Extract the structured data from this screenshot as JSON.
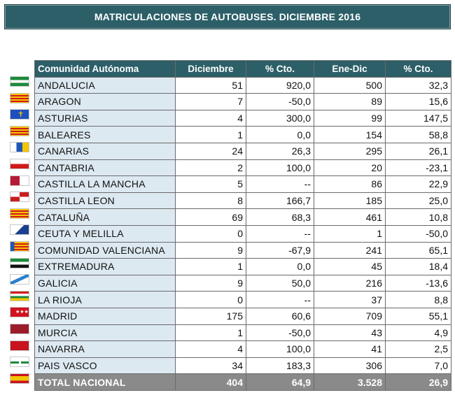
{
  "title": "MATRICULACIONES DE AUTOBUSES. DICIEMBRE 2016",
  "headers": [
    "Comunidad Autónoma",
    "Diciembre",
    "% Cto.",
    "Ene-Dic",
    "% Cto."
  ],
  "rows": [
    {
      "name": "ANDALUCIA",
      "dic": "51",
      "cto1": "920,0",
      "ene": "500",
      "cto2": "32,3",
      "flag": "andalucia-flag"
    },
    {
      "name": "ARAGON",
      "dic": "7",
      "cto1": "-50,0",
      "ene": "89",
      "cto2": "15,6",
      "flag": "aragon-flag"
    },
    {
      "name": "ASTURIAS",
      "dic": "4",
      "cto1": "300,0",
      "ene": "99",
      "cto2": "147,5",
      "flag": "asturias-flag"
    },
    {
      "name": "BALEARES",
      "dic": "1",
      "cto1": "0,0",
      "ene": "154",
      "cto2": "58,8",
      "flag": "baleares-flag"
    },
    {
      "name": "CANARIAS",
      "dic": "24",
      "cto1": "26,3",
      "ene": "295",
      "cto2": "26,1",
      "flag": "canarias-flag"
    },
    {
      "name": "CANTABRIA",
      "dic": "2",
      "cto1": "100,0",
      "ene": "20",
      "cto2": "-23,1",
      "flag": "cantabria-flag"
    },
    {
      "name": "CASTILLA LA MANCHA",
      "dic": "5",
      "cto1": "--",
      "ene": "86",
      "cto2": "22,9",
      "flag": "castilla-la-mancha-flag"
    },
    {
      "name": "CASTILLA LEON",
      "dic": "8",
      "cto1": "166,7",
      "ene": "185",
      "cto2": "25,0",
      "flag": "castilla-leon-flag"
    },
    {
      "name": "CATALUÑA",
      "dic": "69",
      "cto1": "68,3",
      "ene": "461",
      "cto2": "10,8",
      "flag": "cataluna-flag"
    },
    {
      "name": "CEUTA Y MELILLA",
      "dic": "0",
      "cto1": "--",
      "ene": "1",
      "cto2": "-50,0",
      "flag": "ceuta-melilla-flag"
    },
    {
      "name": "COMUNIDAD VALENCIANA",
      "dic": "9",
      "cto1": "-67,9",
      "ene": "241",
      "cto2": "65,1",
      "flag": "valenciana-flag"
    },
    {
      "name": "EXTREMADURA",
      "dic": "1",
      "cto1": "0,0",
      "ene": "45",
      "cto2": "18,4",
      "flag": "extremadura-flag"
    },
    {
      "name": "GALICIA",
      "dic": "9",
      "cto1": "50,0",
      "ene": "216",
      "cto2": "-13,6",
      "flag": "galicia-flag"
    },
    {
      "name": "LA RIOJA",
      "dic": "0",
      "cto1": "--",
      "ene": "37",
      "cto2": "8,8",
      "flag": "la-rioja-flag"
    },
    {
      "name": "MADRID",
      "dic": "175",
      "cto1": "60,6",
      "ene": "709",
      "cto2": "55,1",
      "flag": "madrid-flag"
    },
    {
      "name": "MURCIA",
      "dic": "1",
      "cto1": "-50,0",
      "ene": "43",
      "cto2": "4,9",
      "flag": "murcia-flag"
    },
    {
      "name": "NAVARRA",
      "dic": "4",
      "cto1": "100,0",
      "ene": "41",
      "cto2": "2,5",
      "flag": "navarra-flag"
    },
    {
      "name": "PAIS VASCO",
      "dic": "34",
      "cto1": "183,3",
      "ene": "306",
      "cto2": "7,0",
      "flag": "pais-vasco-flag"
    }
  ],
  "total": {
    "name": "TOTAL NACIONAL",
    "dic": "404",
    "cto1": "64,9",
    "ene": "3.528",
    "cto2": "26,9",
    "flag": "spain-flag"
  },
  "colors": {
    "header": "#2c5f68",
    "name_cell": "#dde9f1",
    "total_row": "#8a8a8a"
  }
}
